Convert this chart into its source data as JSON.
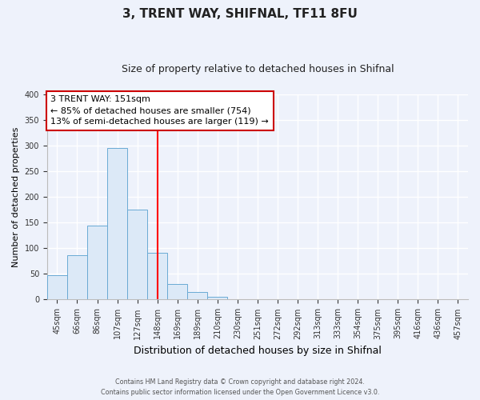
{
  "title": "3, TRENT WAY, SHIFNAL, TF11 8FU",
  "subtitle": "Size of property relative to detached houses in Shifnal",
  "xlabel": "Distribution of detached houses by size in Shifnal",
  "ylabel": "Number of detached properties",
  "footer_line1": "Contains HM Land Registry data © Crown copyright and database right 2024.",
  "footer_line2": "Contains public sector information licensed under the Open Government Licence v3.0.",
  "bin_labels": [
    "45sqm",
    "66sqm",
    "86sqm",
    "107sqm",
    "127sqm",
    "148sqm",
    "169sqm",
    "189sqm",
    "210sqm",
    "230sqm",
    "251sqm",
    "272sqm",
    "292sqm",
    "313sqm",
    "333sqm",
    "354sqm",
    "375sqm",
    "395sqm",
    "416sqm",
    "436sqm",
    "457sqm"
  ],
  "bar_heights": [
    47,
    86,
    144,
    296,
    175,
    91,
    30,
    15,
    5,
    1,
    0,
    0,
    0,
    0,
    0,
    0,
    1,
    0,
    0,
    0,
    1
  ],
  "bar_color": "#dce9f7",
  "bar_edge_color": "#6aaad4",
  "vline_color": "red",
  "vline_x_index": 5,
  "property_label": "3 TRENT WAY: 151sqm",
  "annotation_line1": "← 85% of detached houses are smaller (754)",
  "annotation_line2": "13% of semi-detached houses are larger (119) →",
  "box_color": "white",
  "box_edge_color": "#cc0000",
  "ylim": [
    0,
    400
  ],
  "yticks": [
    0,
    50,
    100,
    150,
    200,
    250,
    300,
    350,
    400
  ],
  "background_color": "#eef2fb",
  "grid_color": "#ffffff",
  "title_fontsize": 11,
  "subtitle_fontsize": 9,
  "ylabel_fontsize": 8,
  "xlabel_fontsize": 9
}
